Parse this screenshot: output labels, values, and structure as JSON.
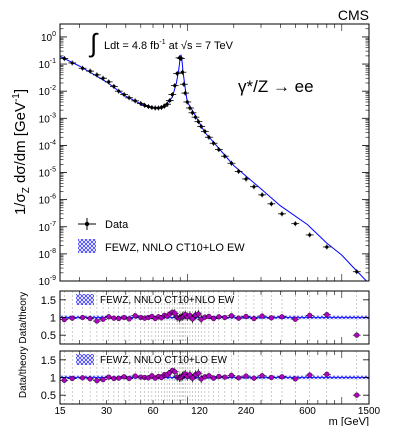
{
  "figure": {
    "experiment": "CMS",
    "luminosity_prefix": "Ldt = 4.8 fb",
    "luminosity_exp": "-1",
    "luminosity_mid": " at ",
    "luminosity_sqrt": "√",
    "luminosity_energy": "s = 7 TeV",
    "process_label": "γ*/Z → ee"
  },
  "colors": {
    "data_marker": "#000000",
    "ratio_marker": "#b000c0",
    "theory_band": "#3a3aff",
    "theory_line": "#0000ff"
  },
  "chart_data": [
    {
      "type": "scatter",
      "panel": "main",
      "xlabel": "m [GeV]",
      "ylabel": "1/σZ dσ/dm [GeV⁻¹]",
      "xscale": "log",
      "yscale": "log",
      "xlim": [
        15,
        1500
      ],
      "ylim": [
        1e-09,
        3
      ],
      "x_ticks": [
        15,
        30,
        60,
        120,
        240,
        600,
        1500
      ],
      "y_ticks": [
        {
          "value": 1,
          "label_exp": "0"
        },
        {
          "value": 0.1,
          "label_exp": "-1"
        },
        {
          "value": 0.01,
          "label_exp": "-2"
        },
        {
          "value": 0.001,
          "label_exp": "-3"
        },
        {
          "value": 0.0001,
          "label_exp": "-4"
        },
        {
          "value": 1e-05,
          "label_exp": "-5"
        },
        {
          "value": 1e-06,
          "label_exp": "-6"
        },
        {
          "value": 1e-07,
          "label_exp": "-7"
        },
        {
          "value": 1e-08,
          "label_exp": "-8"
        },
        {
          "value": 1e-09,
          "label_exp": "-9"
        }
      ],
      "legend": [
        {
          "label": "Data",
          "kind": "marker"
        },
        {
          "label": "FEWZ, NNLO CT10+LO EW",
          "kind": "band"
        }
      ],
      "legend_position": "bottom-left",
      "series": [
        {
          "name": "Data",
          "x": [
            16,
            18,
            21,
            23.5,
            26,
            28.5,
            31,
            33.5,
            36,
            39,
            42,
            46,
            50,
            53,
            56,
            59,
            62,
            65,
            68,
            71,
            74,
            77,
            80,
            83,
            86,
            89,
            91,
            93,
            95,
            97,
            100,
            104,
            108,
            113,
            118,
            123,
            130,
            138,
            148,
            160,
            175,
            193,
            215,
            240,
            270,
            305,
            350,
            410,
            500,
            620,
            800,
            1250
          ],
          "y": [
            0.16,
            0.11,
            0.07,
            0.055,
            0.04,
            0.03,
            0.022,
            0.015,
            0.01,
            0.0075,
            0.0057,
            0.0044,
            0.0035,
            0.003,
            0.0027,
            0.0025,
            0.0024,
            0.0024,
            0.0025,
            0.0028,
            0.0033,
            0.0045,
            0.0075,
            0.016,
            0.045,
            0.17,
            0.16,
            0.05,
            0.018,
            0.0085,
            0.004,
            0.0024,
            0.0016,
            0.0011,
            0.00075,
            0.0005,
            0.00033,
            0.0002,
            0.00012,
            7e-05,
            4e-05,
            2.2e-05,
            1.1e-05,
            5.8e-06,
            3e-06,
            1.5e-06,
            7e-07,
            3e-07,
            1.3e-07,
            5e-08,
            1.8e-08,
            2.2e-09
          ]
        }
      ],
      "theory_curve": {
        "name": "FEWZ, NNLO CT10+LO EW",
        "x": [
          15,
          20,
          30,
          40,
          50,
          60,
          70,
          80,
          85,
          88,
          90,
          91,
          92,
          94,
          97,
          100,
          110,
          130,
          150,
          200,
          300,
          400,
          600,
          800,
          1000,
          1200,
          1500
        ],
        "y": [
          0.19,
          0.085,
          0.022,
          0.0065,
          0.0034,
          0.0024,
          0.0026,
          0.006,
          0.02,
          0.06,
          0.17,
          0.22,
          0.17,
          0.05,
          0.012,
          0.004,
          0.0016,
          0.0003,
          0.00012,
          1.8e-05,
          2.5e-06,
          6e-07,
          1.2e-07,
          2.5e-08,
          9e-09,
          3e-09,
          8e-10
        ]
      }
    },
    {
      "type": "scatter",
      "panel": "ratio-1",
      "ylabel": "Data/theory",
      "xscale": "log",
      "ylim": [
        0.25,
        1.75
      ],
      "y_ticks": [
        0.5,
        1,
        1.5
      ],
      "legend": [
        {
          "label": "FEWZ, NNLO CT10+NLO EW",
          "kind": "band"
        }
      ],
      "x": [
        16,
        18,
        21,
        23.5,
        26,
        28.5,
        31,
        33.5,
        36,
        39,
        42,
        46,
        50,
        53,
        56,
        59,
        62,
        65,
        68,
        71,
        74,
        77,
        80,
        83,
        86,
        89,
        91,
        93,
        95,
        97,
        100,
        104,
        108,
        113,
        118,
        123,
        130,
        138,
        148,
        160,
        175,
        193,
        215,
        240,
        270,
        305,
        350,
        410,
        500,
        620,
        800,
        1250
      ],
      "values": [
        0.94,
        0.98,
        1.0,
        0.97,
        0.9,
        0.95,
        1.02,
        0.98,
        0.97,
        1.0,
        0.96,
        1.05,
        1.0,
        0.98,
        1.0,
        1.03,
        0.97,
        1.02,
        0.99,
        1.06,
        1.04,
        1.1,
        1.15,
        1.12,
        1.0,
        0.98,
        1.01,
        1.03,
        1.05,
        1.08,
        1.02,
        1.06,
        0.96,
        1.07,
        1.1,
        0.95,
        1.01,
        1.03,
        0.97,
        1.02,
        1.0,
        1.05,
        0.98,
        1.03,
        0.97,
        1.04,
        0.99,
        1.02,
        0.95,
        1.06,
        1.08,
        0.5
      ],
      "band_halfwidth": 0.05
    },
    {
      "type": "scatter",
      "panel": "ratio-2",
      "ylabel": "Data/theory",
      "xlabel": "m [GeV]",
      "xscale": "log",
      "ylim": [
        0.25,
        1.75
      ],
      "y_ticks": [
        0.5,
        1,
        1.5
      ],
      "x_ticks": [
        15,
        30,
        60,
        120,
        240,
        600,
        1500
      ],
      "legend": [
        {
          "label": "FEWZ, NNLO CT10+LO EW",
          "kind": "band"
        }
      ],
      "x": [
        16,
        18,
        21,
        23.5,
        26,
        28.5,
        31,
        33.5,
        36,
        39,
        42,
        46,
        50,
        53,
        56,
        59,
        62,
        65,
        68,
        71,
        74,
        77,
        80,
        83,
        86,
        89,
        91,
        93,
        95,
        97,
        100,
        104,
        108,
        113,
        118,
        123,
        130,
        138,
        148,
        160,
        175,
        193,
        215,
        240,
        270,
        305,
        350,
        410,
        500,
        620,
        800,
        1250
      ],
      "values": [
        0.92,
        0.97,
        0.99,
        0.96,
        0.91,
        0.94,
        1.01,
        0.97,
        0.98,
        1.02,
        0.97,
        1.04,
        1.01,
        1.0,
        0.99,
        1.05,
        0.98,
        1.03,
        1.0,
        1.08,
        1.07,
        1.14,
        1.2,
        1.16,
        1.01,
        0.99,
        1.0,
        1.04,
        1.07,
        1.1,
        1.03,
        1.08,
        0.98,
        1.08,
        1.12,
        0.96,
        1.02,
        1.05,
        0.98,
        1.03,
        1.01,
        1.06,
        0.99,
        1.04,
        0.98,
        1.05,
        1.0,
        1.02,
        0.96,
        1.07,
        1.09,
        0.5
      ],
      "band_halfwidth": 0.05
    }
  ]
}
